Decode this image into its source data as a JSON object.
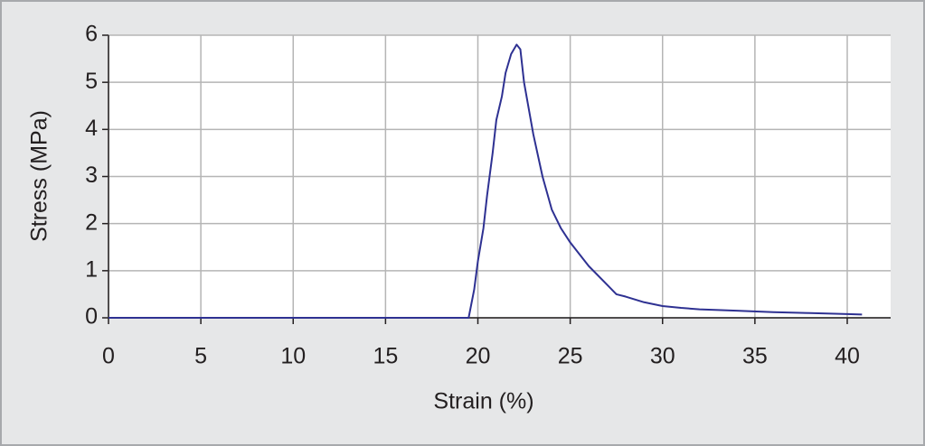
{
  "chart_data": {
    "type": "line",
    "x_label": "Strain (%)",
    "y_label": "Stress (MPa)",
    "xlim": [
      0,
      42.35
    ],
    "ylim": [
      0,
      6
    ],
    "xticks": [
      0,
      5,
      10,
      15,
      20,
      25,
      30,
      35,
      40
    ],
    "yticks": [
      0,
      1,
      2,
      3,
      4,
      5,
      6
    ],
    "grid": true,
    "series": [
      {
        "color": "#2e3192",
        "x": [
          0,
          19.5,
          19.8,
          20,
          20.3,
          20.5,
          20.8,
          21,
          21.3,
          21.5,
          21.8,
          22.1,
          22.3,
          22.5,
          23,
          23.5,
          24,
          24.5,
          25,
          26,
          27,
          27.5,
          28,
          29,
          30,
          31,
          32,
          34,
          36,
          38,
          40,
          40.8
        ],
        "values": [
          0,
          0,
          0.6,
          1.2,
          1.9,
          2.6,
          3.5,
          4.2,
          4.7,
          5.2,
          5.6,
          5.8,
          5.7,
          5.0,
          3.9,
          3.0,
          2.3,
          1.9,
          1.6,
          1.1,
          0.7,
          0.5,
          0.45,
          0.33,
          0.25,
          0.21,
          0.18,
          0.15,
          0.12,
          0.1,
          0.08,
          0.07
        ]
      }
    ]
  }
}
